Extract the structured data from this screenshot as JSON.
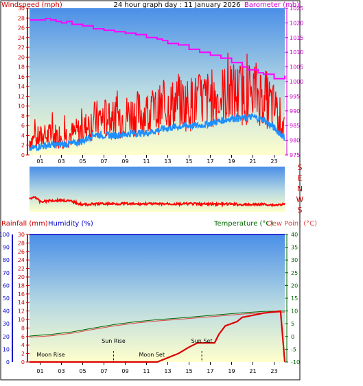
{
  "header": {
    "windspeed_label": "Windspeed (mph)",
    "title": "24 hour graph day : 11 January 2026",
    "barometer_label": "Barometer (mb)"
  },
  "lower_header": {
    "rainfall_label": "Rainfall (mm)",
    "humidity_label": "Humidity (%)",
    "temperature_label": "Temperature (°C)",
    "dewpoint_label": "Dew Point (°C)"
  },
  "direction_labels": [
    "S",
    "E",
    "N",
    "W",
    "S"
  ],
  "annotations": {
    "moon_rise": "Moon Rise",
    "sun_rise": "Sun Rise",
    "moon_set": "Moon Set",
    "sun_set": "Sun Set"
  },
  "colors": {
    "wind": "#ff0000",
    "gust_blue": "#1e90ff",
    "barometer": "#ff00ff",
    "rain": "#dd0000",
    "humidity": "#0000cc",
    "temperature": "#006600",
    "dewpoint": "#dd4444",
    "sky_top": "#4a8fe8",
    "sky_bottom": "#ffffcc"
  },
  "chart_data": [
    {
      "type": "line",
      "title": "24 hour graph day : 11 January 2026",
      "x_tick_labels": [
        "01",
        "03",
        "05",
        "07",
        "09",
        "11",
        "13",
        "15",
        "17",
        "19",
        "21",
        "23"
      ],
      "x_range_hours": [
        0,
        24
      ],
      "y_left": {
        "label": "Windspeed (mph)",
        "ylim": [
          0,
          30
        ],
        "ticks": [
          "0",
          "2",
          "4",
          "6",
          "8",
          "10",
          "12",
          "14",
          "16",
          "18",
          "20",
          "22",
          "24",
          "26",
          "28",
          "30"
        ]
      },
      "y_right": {
        "label": "Barometer (mb)",
        "ylim": [
          975,
          1025
        ],
        "ticks": [
          "975",
          "980",
          "985",
          "990",
          "995",
          "1000",
          "1005",
          "1010",
          "1015",
          "1020",
          "1025"
        ]
      },
      "series": [
        {
          "name": "Barometer (mb)",
          "axis": "right",
          "x": [
            0,
            1.0,
            1.5,
            2.0,
            2.5,
            3.0,
            3.5,
            4.0,
            5.0,
            6.0,
            7.0,
            8.0,
            9.0,
            10.0,
            11.0,
            12.0,
            12.5,
            13.0,
            14.0,
            15.0,
            16.0,
            17.0,
            18.0,
            19.0,
            20.0,
            20.5,
            21.0,
            21.5,
            22.0,
            22.5,
            23.0,
            23.5,
            24.0
          ],
          "y": [
            1021,
            1021,
            1021.5,
            1021,
            1020.5,
            1020,
            1020.5,
            1019.5,
            1019,
            1018,
            1017.5,
            1017,
            1016.5,
            1016,
            1015,
            1014.5,
            1014,
            1013,
            1012.5,
            1011,
            1010,
            1009,
            1008,
            1006.5,
            1005,
            1004,
            1004,
            1003,
            1002.5,
            1002.5,
            1001,
            1001,
            1002
          ]
        },
        {
          "name": "Wind speed",
          "axis": "left",
          "color": "blue",
          "x": [
            0,
            1,
            2,
            3,
            4,
            5,
            6,
            7,
            8,
            9,
            10,
            11,
            12,
            13,
            14,
            15,
            16,
            17,
            18,
            19,
            20,
            21,
            22,
            23,
            24
          ],
          "y": [
            1.2,
            1.8,
            2.0,
            2.2,
            2.3,
            2.8,
            4.2,
            4.0,
            4.0,
            4.2,
            4.5,
            4.5,
            5.0,
            5.5,
            5.8,
            6.0,
            6.0,
            6.5,
            7.0,
            7.5,
            7.5,
            7.8,
            7.2,
            5.5,
            3.5
          ]
        },
        {
          "name": "Wind gust",
          "axis": "left",
          "color": "red",
          "x": [
            0,
            1,
            2,
            3,
            4,
            5,
            6,
            7,
            8,
            9,
            10,
            11,
            12,
            13,
            14,
            15,
            16,
            17,
            18,
            19,
            20,
            21,
            22,
            23,
            24
          ],
          "y": [
            3.0,
            3.5,
            4.0,
            4.0,
            4.2,
            5.0,
            7.0,
            7.5,
            7.5,
            8.0,
            8.5,
            8.5,
            9.0,
            10.0,
            10.5,
            10.5,
            11.0,
            11.5,
            12.0,
            12.5,
            12.5,
            13.0,
            12.0,
            9.5,
            6.0
          ]
        }
      ]
    },
    {
      "type": "line",
      "title": "",
      "y_tick_labels": [
        "S",
        "E",
        "N",
        "W",
        "S"
      ],
      "series": [
        {
          "name": "Wind direction",
          "x": [
            0,
            0.5,
            1,
            2,
            3,
            4,
            5,
            6,
            7,
            8,
            9,
            10,
            11,
            12,
            13,
            14,
            15,
            16,
            17,
            18,
            19,
            20,
            21,
            22,
            23,
            24
          ],
          "y_fraction_from_top": [
            0.72,
            0.66,
            0.78,
            0.75,
            0.74,
            0.77,
            0.84,
            0.83,
            0.82,
            0.82,
            0.82,
            0.83,
            0.82,
            0.83,
            0.82,
            0.83,
            0.82,
            0.83,
            0.83,
            0.83,
            0.83,
            0.84,
            0.84,
            0.83,
            0.85,
            0.83
          ]
        }
      ]
    },
    {
      "type": "line",
      "title": "",
      "x_tick_labels": [
        "01",
        "03",
        "05",
        "07",
        "09",
        "11",
        "13",
        "15",
        "17",
        "19",
        "21",
        "23"
      ],
      "y_rain": {
        "label": "Rainfall (mm)",
        "ylim": [
          0,
          30
        ],
        "ticks": [
          "0",
          "2",
          "4",
          "6",
          "8",
          "10",
          "12",
          "14",
          "16",
          "18",
          "20",
          "22",
          "24",
          "26",
          "28",
          "30"
        ]
      },
      "y_humidity": {
        "label": "Humidity (%)",
        "ylim": [
          0,
          100
        ],
        "ticks": [
          "0",
          "10",
          "20",
          "30",
          "40",
          "50",
          "60",
          "70",
          "80",
          "90",
          "100"
        ]
      },
      "y_temperature": {
        "label": "Temperature (°C)",
        "ylim": [
          -10,
          40
        ],
        "ticks": [
          "-10",
          "-5",
          "0",
          "5",
          "10",
          "15",
          "20",
          "25",
          "30",
          "35",
          "40"
        ]
      },
      "series": [
        {
          "name": "Humidity (%)",
          "axis": "humidity",
          "x": [
            0,
            24
          ],
          "y": [
            100,
            100
          ]
        },
        {
          "name": "Temperature (°C)",
          "axis": "temperature",
          "x": [
            0,
            2,
            4,
            6,
            8,
            10,
            12,
            14,
            16,
            18,
            20,
            22,
            24
          ],
          "y": [
            0.2,
            0.8,
            1.8,
            3.3,
            4.7,
            5.8,
            6.6,
            7.2,
            7.9,
            8.6,
            9.3,
            9.8,
            10.0
          ]
        },
        {
          "name": "Dew Point (°C)",
          "axis": "temperature",
          "x": [
            0,
            2,
            4,
            6,
            8,
            10,
            12,
            14,
            16,
            18,
            20,
            22,
            24
          ],
          "y": [
            -0.3,
            0.3,
            1.3,
            2.8,
            4.2,
            5.3,
            6.1,
            6.7,
            7.4,
            8.1,
            8.8,
            9.3,
            9.6
          ]
        },
        {
          "name": "Rainfall (mm)",
          "axis": "rain",
          "x": [
            0,
            12.0,
            13.0,
            14.0,
            15.0,
            15.8,
            16.4,
            17.0,
            17.4,
            17.8,
            18.4,
            19.5,
            20.0,
            21.0,
            22.0,
            23.0,
            23.6,
            24.0
          ],
          "y": [
            0,
            0,
            1.0,
            2.0,
            3.5,
            4.5,
            4.5,
            4.5,
            4.5,
            6.5,
            8.5,
            9.5,
            10.5,
            11.0,
            11.5,
            11.8,
            12.0,
            0
          ]
        }
      ],
      "markers": [
        {
          "label": "Moon Rise",
          "hour": 2.0
        },
        {
          "label": "Sun Rise",
          "hour": 7.9
        },
        {
          "label": "Moon Set",
          "hour": 11.5
        },
        {
          "label": "Sun Set",
          "hour": 16.2
        }
      ]
    }
  ]
}
